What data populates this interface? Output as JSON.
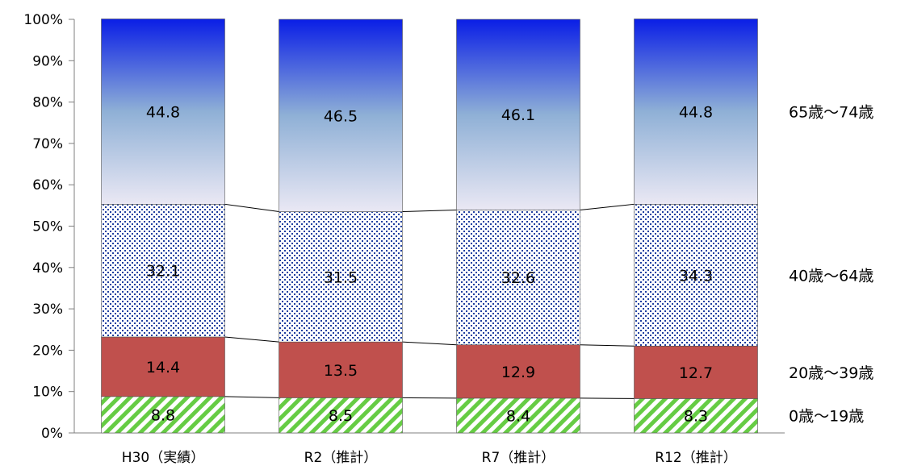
{
  "chart_data": {
    "type": "bar",
    "stacked": true,
    "percent": true,
    "title": "",
    "xlabel": "",
    "ylabel": "",
    "ylim": [
      0,
      100
    ],
    "yticks": [
      "0%",
      "10%",
      "20%",
      "30%",
      "40%",
      "50%",
      "60%",
      "70%",
      "80%",
      "90%",
      "100%"
    ],
    "categories": [
      "H30（実績）",
      "R2（推計）",
      "R7（推計）",
      "R12（推計）"
    ],
    "series": [
      {
        "name": "0歳～19歳",
        "values": [
          8.8,
          8.5,
          8.4,
          8.3
        ],
        "color": "#66cc44",
        "pattern": "diagonal-stripes"
      },
      {
        "name": "20歳～39歳",
        "values": [
          14.4,
          13.5,
          12.9,
          12.7
        ],
        "color": "#c0504d",
        "pattern": "solid"
      },
      {
        "name": "40歳～64歳",
        "values": [
          32.1,
          31.5,
          32.6,
          34.3
        ],
        "color": "#1f3fa0",
        "pattern": "dots"
      },
      {
        "name": "65歳～74歳",
        "values": [
          44.8,
          46.5,
          46.1,
          44.8
        ],
        "color": "#0a1ee6",
        "pattern": "gradient"
      }
    ],
    "legend_position": "right",
    "grid": false,
    "series_lines": true
  }
}
